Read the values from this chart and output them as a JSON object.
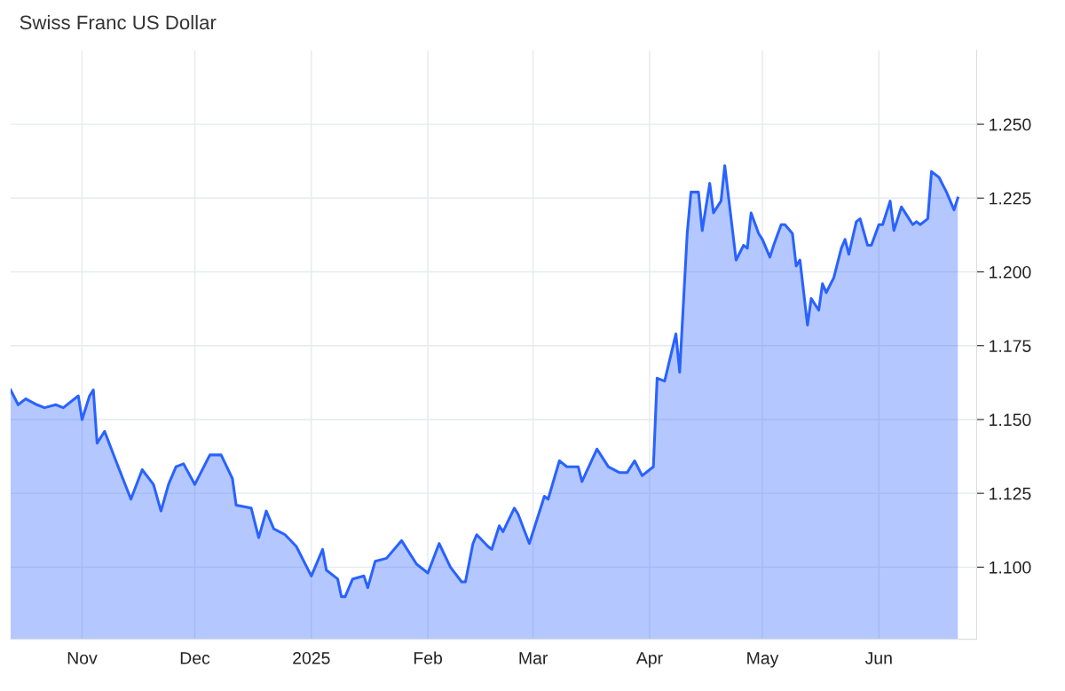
{
  "chart_data": {
    "type": "area",
    "title": "Swiss Franc US Dollar",
    "x": [
      "2024-10-13",
      "2024-10-15",
      "2024-10-17",
      "2024-10-20",
      "2024-10-22",
      "2024-10-25",
      "2024-10-27",
      "2024-10-31",
      "2024-11-01",
      "2024-11-03",
      "2024-11-04",
      "2024-11-05",
      "2024-11-07",
      "2024-11-10",
      "2024-11-14",
      "2024-11-17",
      "2024-11-20",
      "2024-11-22",
      "2024-11-24",
      "2024-11-26",
      "2024-11-28",
      "2024-12-01",
      "2024-12-05",
      "2024-12-08",
      "2024-12-11",
      "2024-12-12",
      "2024-12-16",
      "2024-12-18",
      "2024-12-20",
      "2024-12-22",
      "2024-12-25",
      "2024-12-28",
      "2025-01-01",
      "2025-01-04",
      "2025-01-05",
      "2025-01-08",
      "2025-01-09",
      "2025-01-10",
      "2025-01-12",
      "2025-01-15",
      "2025-01-16",
      "2025-01-18",
      "2025-01-21",
      "2025-01-25",
      "2025-01-29",
      "2025-02-01",
      "2025-02-04",
      "2025-02-07",
      "2025-02-10",
      "2025-02-11",
      "2025-02-13",
      "2025-02-14",
      "2025-02-17",
      "2025-02-18",
      "2025-02-20",
      "2025-02-21",
      "2025-02-24",
      "2025-02-25",
      "2025-02-28",
      "2025-03-04",
      "2025-03-05",
      "2025-03-08",
      "2025-03-10",
      "2025-03-13",
      "2025-03-14",
      "2025-03-18",
      "2025-03-21",
      "2025-03-24",
      "2025-03-26",
      "2025-03-28",
      "2025-03-30",
      "2025-04-02",
      "2025-04-03",
      "2025-04-05",
      "2025-04-08",
      "2025-04-09",
      "2025-04-11",
      "2025-04-12",
      "2025-04-14",
      "2025-04-15",
      "2025-04-17",
      "2025-04-18",
      "2025-04-20",
      "2025-04-21",
      "2025-04-24",
      "2025-04-26",
      "2025-04-27",
      "2025-04-28",
      "2025-04-30",
      "2025-05-01",
      "2025-05-03",
      "2025-05-04",
      "2025-05-06",
      "2025-05-07",
      "2025-05-09",
      "2025-05-10",
      "2025-05-11",
      "2025-05-13",
      "2025-05-14",
      "2025-05-16",
      "2025-05-17",
      "2025-05-18",
      "2025-05-20",
      "2025-05-22",
      "2025-05-23",
      "2025-05-24",
      "2025-05-26",
      "2025-05-27",
      "2025-05-29",
      "2025-05-30",
      "2025-06-01",
      "2025-06-02",
      "2025-06-04",
      "2025-06-05",
      "2025-06-07",
      "2025-06-08",
      "2025-06-10",
      "2025-06-11",
      "2025-06-12",
      "2025-06-14",
      "2025-06-15",
      "2025-06-17",
      "2025-06-19",
      "2025-06-21",
      "2025-06-22"
    ],
    "series": [
      {
        "color": "#2962ff",
        "values": [
          1.16,
          1.155,
          1.157,
          1.155,
          1.154,
          1.155,
          1.154,
          1.158,
          1.15,
          1.158,
          1.16,
          1.142,
          1.146,
          1.136,
          1.123,
          1.133,
          1.128,
          1.119,
          1.128,
          1.134,
          1.135,
          1.128,
          1.138,
          1.138,
          1.13,
          1.121,
          1.12,
          1.11,
          1.119,
          1.113,
          1.111,
          1.107,
          1.097,
          1.106,
          1.099,
          1.096,
          1.09,
          1.09,
          1.096,
          1.097,
          1.093,
          1.102,
          1.103,
          1.109,
          1.101,
          1.098,
          1.108,
          1.1,
          1.095,
          1.095,
          1.108,
          1.111,
          1.107,
          1.106,
          1.114,
          1.112,
          1.12,
          1.118,
          1.108,
          1.124,
          1.123,
          1.136,
          1.134,
          1.134,
          1.129,
          1.14,
          1.134,
          1.132,
          1.132,
          1.136,
          1.131,
          1.134,
          1.164,
          1.163,
          1.179,
          1.166,
          1.213,
          1.227,
          1.227,
          1.214,
          1.23,
          1.22,
          1.224,
          1.236,
          1.204,
          1.209,
          1.208,
          1.22,
          1.213,
          1.211,
          1.205,
          1.209,
          1.216,
          1.216,
          1.213,
          1.202,
          1.204,
          1.182,
          1.191,
          1.187,
          1.196,
          1.193,
          1.198,
          1.208,
          1.211,
          1.206,
          1.217,
          1.218,
          1.209,
          1.209,
          1.216,
          1.216,
          1.224,
          1.214,
          1.222,
          1.22,
          1.216,
          1.217,
          1.216,
          1.218,
          1.234,
          1.232,
          1.227,
          1.221,
          1.225
        ]
      }
    ],
    "xlim": [
      "2024-10-13",
      "2025-06-27"
    ],
    "xticks": [
      {
        "value": "2024-11-01",
        "label": "Nov"
      },
      {
        "value": "2024-12-01",
        "label": "Dec"
      },
      {
        "value": "2025-01-01",
        "label": "2025"
      },
      {
        "value": "2025-02-01",
        "label": "Feb"
      },
      {
        "value": "2025-03-01",
        "label": "Mar"
      },
      {
        "value": "2025-04-01",
        "label": "Apr"
      },
      {
        "value": "2025-05-01",
        "label": "May"
      },
      {
        "value": "2025-06-01",
        "label": "Jun"
      }
    ],
    "ylim": [
      1.0756,
      1.275
    ],
    "yticks": [
      {
        "value": 1.1,
        "label": "1.100"
      },
      {
        "value": 1.125,
        "label": "1.125"
      },
      {
        "value": 1.15,
        "label": "1.150"
      },
      {
        "value": 1.175,
        "label": "1.175"
      },
      {
        "value": 1.2,
        "label": "1.200"
      },
      {
        "value": 1.225,
        "label": "1.225"
      },
      {
        "value": 1.25,
        "label": "1.250"
      }
    ],
    "grid": true,
    "legend": false
  }
}
